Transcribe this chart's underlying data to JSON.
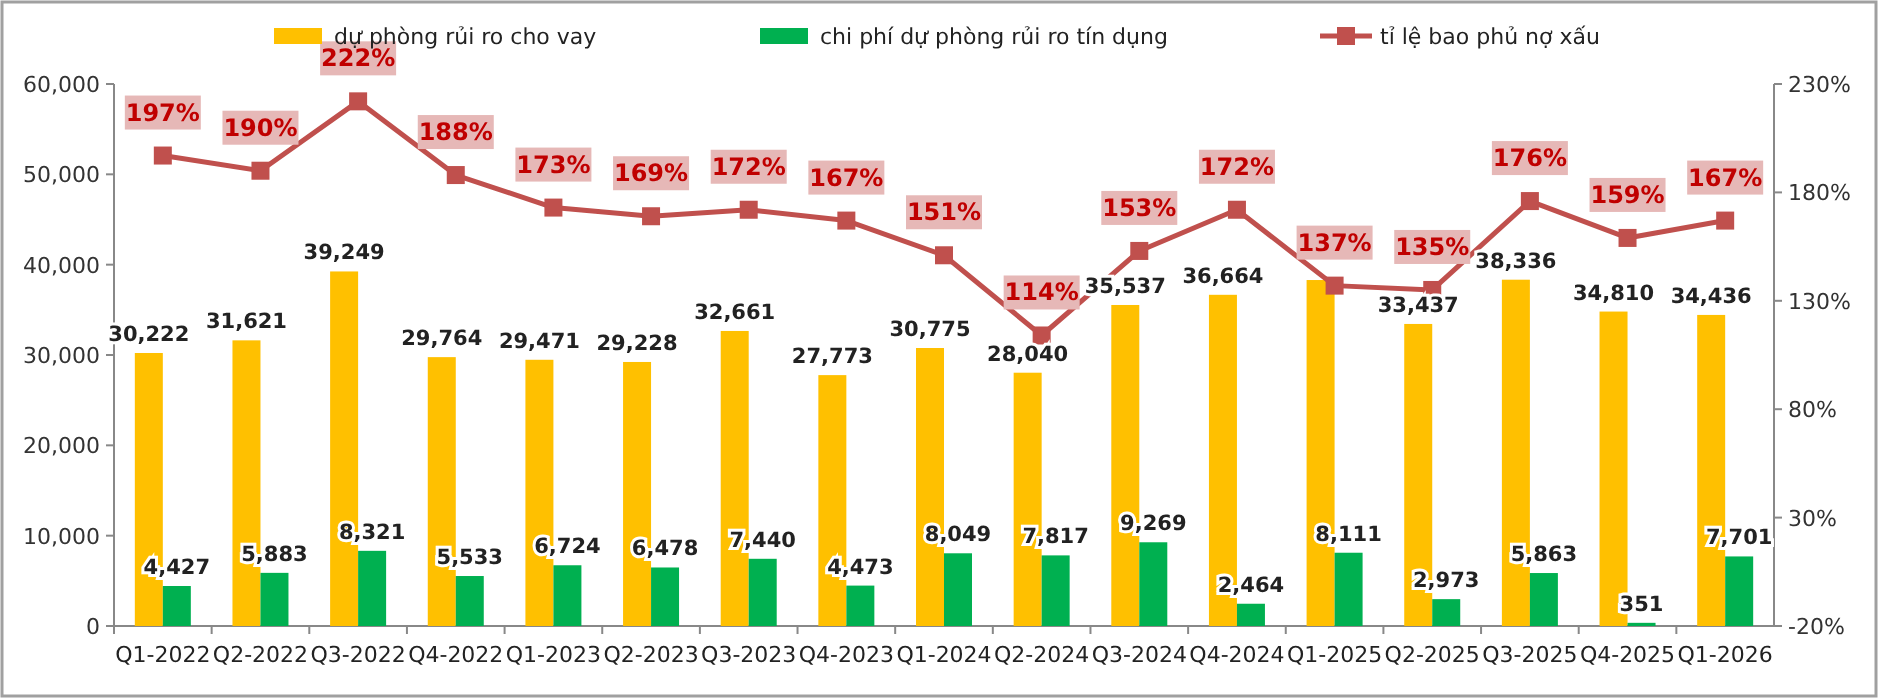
{
  "chart_data": {
    "type": "bar",
    "categories": [
      "Q1-2022",
      "Q2-2022",
      "Q3-2022",
      "Q4-2022",
      "Q1-2023",
      "Q2-2023",
      "Q3-2023",
      "Q4-2023",
      "Q1-2024",
      "Q2-2024",
      "Q3-2024",
      "Q4-2024",
      "Q1-2025",
      "Q2-2025",
      "Q3-2025",
      "Q4-2025",
      "Q1-2026"
    ],
    "series": [
      {
        "name": "dự phòng rủi ro cho vay",
        "color": "#ffc000",
        "values": [
          30222,
          31621,
          39249,
          29764,
          29471,
          29228,
          32661,
          27773,
          30775,
          28040,
          35537,
          36664,
          38300,
          33437,
          38336,
          34810,
          34436
        ],
        "value_labels": [
          "30,222",
          "31,621",
          "39,249",
          "29,764",
          "29,471",
          "29,228",
          "32,661",
          "27,773",
          "30,775",
          "28,040",
          "35,537",
          "36,664",
          null,
          "33,437",
          "38,336",
          "34,810",
          "34,436"
        ]
      },
      {
        "name": "chi phí dự phòng rủi ro tín dụng",
        "color": "#00b050",
        "values": [
          4427,
          5883,
          8321,
          5533,
          6724,
          6478,
          7440,
          4473,
          8049,
          7817,
          9269,
          2464,
          8111,
          2973,
          5863,
          351,
          7701
        ],
        "value_labels": [
          "4,427",
          "5,883",
          "8,321",
          "5,533",
          "6,724",
          "6,478",
          "7,440",
          "4,473",
          "8,049",
          "7,817",
          "9,269",
          "2,464",
          "8,111",
          "2,973",
          "5,863",
          "351",
          "7,701"
        ]
      },
      {
        "name": "tỉ lệ bao phủ nợ xấu",
        "type": "line",
        "axis": "y2",
        "color": "#c0504d",
        "marker": "square",
        "values": [
          197,
          190,
          222,
          188,
          173,
          169,
          172,
          167,
          151,
          114,
          153,
          172,
          137,
          135,
          176,
          159,
          167
        ],
        "value_labels": [
          "197%",
          "190%",
          "222%",
          "188%",
          "173%",
          "169%",
          "172%",
          "167%",
          "151%",
          "114%",
          "153%",
          "172%",
          "137%",
          "135%",
          "176%",
          "159%",
          "167%"
        ]
      }
    ],
    "ylim": [
      0,
      60000
    ],
    "yticks": [
      0,
      {
        "value": 10000,
        "label": "10,000"
      },
      {
        "value": 20000,
        "label": "20,000"
      },
      {
        "value": 30000,
        "label": "30,000"
      },
      {
        "value": 40000,
        "label": "40,000"
      },
      {
        "value": 50000,
        "label": "50,000"
      },
      {
        "value": 60000,
        "label": "60,000"
      }
    ],
    "y2lim": [
      -20,
      230
    ],
    "y2ticks": [
      {
        "value": -20,
        "label": "-20%"
      },
      {
        "value": 30,
        "label": "30%"
      },
      {
        "value": 80,
        "label": "80%"
      },
      {
        "value": 130,
        "label": "130%"
      },
      {
        "value": 180,
        "label": "180%"
      },
      {
        "value": 230,
        "label": "230%"
      }
    ],
    "legend": "top",
    "grid": false
  }
}
